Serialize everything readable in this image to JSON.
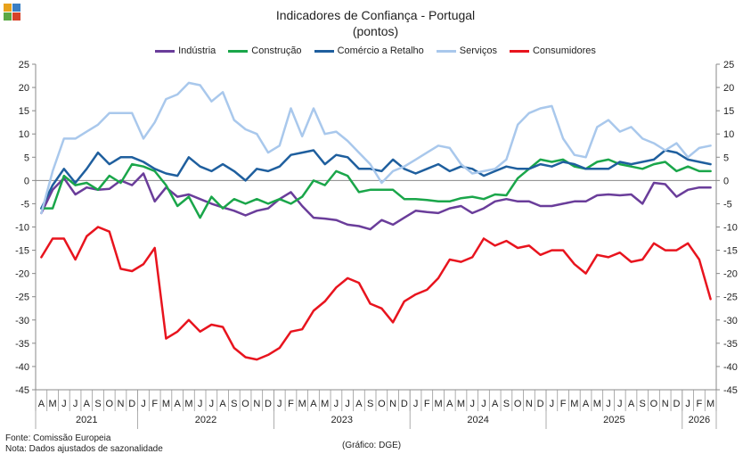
{
  "header": {
    "title": "Indicadores de Confiança - Portugal",
    "subtitle": "(pontos)"
  },
  "footer": {
    "source": "Fonte: Comissão Europeia",
    "note": "Nota: Dados ajustados de sazonalidade",
    "credit": "(Gráfico: DGE)"
  },
  "logo_colors": [
    "#e8a21c",
    "#3b7fc4",
    "#5aa844",
    "#d6432a"
  ],
  "chart_data": {
    "type": "line",
    "title": "Indicadores de Confiança - Portugal",
    "subtitle": "(pontos)",
    "ylim": [
      -45,
      25
    ],
    "yticks": [
      25,
      20,
      15,
      10,
      5,
      0,
      -5,
      -10,
      -15,
      -20,
      -25,
      -30,
      -35,
      -40,
      -45
    ],
    "y2ticks": [
      25,
      20,
      15,
      10,
      5,
      0,
      -5,
      -10,
      -15,
      -20,
      -25,
      -30,
      -35,
      -40,
      -45
    ],
    "grid": false,
    "legend_position": "top",
    "month_labels": [
      "A",
      "M",
      "J",
      "J",
      "A",
      "S",
      "O",
      "N",
      "D",
      "J",
      "F",
      "M",
      "A",
      "M",
      "J",
      "J",
      "A",
      "S",
      "O",
      "N",
      "D",
      "J",
      "F",
      "M",
      "A",
      "M",
      "J",
      "J",
      "A",
      "S",
      "O",
      "N",
      "D",
      "J",
      "F",
      "M",
      "A",
      "M",
      "J",
      "J",
      "A",
      "S",
      "O",
      "N",
      "D",
      "J",
      "F",
      "M",
      "A",
      "M",
      "J",
      "J",
      "A",
      "S",
      "O",
      "N",
      "D",
      "J",
      "F",
      "M"
    ],
    "years": [
      {
        "label": "2021",
        "start": 0,
        "end": 9
      },
      {
        "label": "2022",
        "start": 9,
        "end": 21
      },
      {
        "label": "2023",
        "start": 21,
        "end": 33
      },
      {
        "label": "2024",
        "start": 33,
        "end": 45
      },
      {
        "label": "2025",
        "start": 45,
        "end": 57
      },
      {
        "label": "2026",
        "start": 57,
        "end": 60
      }
    ],
    "series": [
      {
        "name": "Indústria",
        "color": "#6a3d9a",
        "values": [
          -7,
          -2,
          0.5,
          -3,
          -1.5,
          -2,
          -1.8,
          0,
          -1,
          1.5,
          -4.5,
          -1.5,
          -3.5,
          -3,
          -4,
          -5,
          -5.8,
          -6.5,
          -7.5,
          -6.5,
          -6,
          -4,
          -2.5,
          -5.5,
          -8,
          -8.2,
          -8.5,
          -9.5,
          -9.8,
          -10.5,
          -8.5,
          -9.5,
          -8,
          -6.5,
          -6.8,
          -7,
          -6,
          -5.5,
          -7,
          -6,
          -4.5,
          -4,
          -4.5,
          -4.5,
          -5.5,
          -5.5,
          -5,
          -4.5,
          -4.5,
          -3.2,
          -3,
          -3.2,
          -3,
          -5,
          -0.5,
          -0.8,
          -3.5,
          -2,
          -1.5,
          -1.5
        ]
      },
      {
        "name": "Construção",
        "color": "#1aa64a",
        "values": [
          -6,
          -6,
          1,
          -1,
          -0.5,
          -2,
          1,
          -0.5,
          3.5,
          3,
          2,
          -1,
          -5.5,
          -3.5,
          -8,
          -3.5,
          -6,
          -4,
          -5,
          -4,
          -5,
          -4,
          -5,
          -3.5,
          0,
          -1,
          2,
          1,
          -2.5,
          -2,
          -2,
          -2,
          -4,
          -4,
          -4.2,
          -4.5,
          -4.5,
          -3.8,
          -3.5,
          -4,
          -3,
          -3.2,
          0.5,
          2.5,
          4.5,
          4,
          4.5,
          3,
          2.5,
          4,
          4.5,
          3.5,
          3,
          2.5,
          3.5,
          4,
          2,
          3,
          2,
          2
        ]
      },
      {
        "name": "Comércio a Retalho",
        "color": "#1f5f9e",
        "values": [
          -6,
          -1,
          2.5,
          -0.5,
          2.5,
          6,
          3.5,
          5,
          5,
          4,
          2.5,
          1.5,
          1,
          5,
          3,
          2,
          3.5,
          2,
          0,
          2.5,
          2,
          3,
          5.5,
          6,
          6.5,
          3.5,
          5.5,
          5,
          2.5,
          2.5,
          2,
          4.5,
          2.5,
          1.5,
          2.5,
          3.5,
          2,
          3,
          2.5,
          1,
          2,
          3,
          2.5,
          2.5,
          3.5,
          3,
          4,
          3.5,
          2.5,
          2.5,
          2.5,
          4,
          3.5,
          4,
          4.5,
          6.5,
          6,
          4.5,
          4,
          3.5
        ]
      },
      {
        "name": "Serviços",
        "color": "#a9c8ec",
        "values": [
          -7,
          2,
          9,
          9,
          10.5,
          12,
          14.5,
          14.5,
          14.5,
          9,
          12.5,
          17.5,
          18.5,
          21,
          20.5,
          17,
          19,
          13,
          11,
          10,
          6,
          7.5,
          15.5,
          9.5,
          15.5,
          10,
          10.5,
          8.5,
          6,
          3.5,
          -0.5,
          2,
          3,
          4.5,
          6,
          7.5,
          7,
          3.5,
          1.5,
          2,
          2.5,
          4.5,
          12,
          14.5,
          15.5,
          16,
          9,
          5.5,
          5,
          11.5,
          13,
          10.5,
          11.5,
          9,
          8,
          6.5,
          8,
          5,
          7,
          7.5
        ]
      },
      {
        "name": "Consumidores",
        "color": "#e8141e",
        "values": [
          -16.5,
          -12.5,
          -12.5,
          -17,
          -12,
          -10,
          -11,
          -19,
          -19.5,
          -18,
          -14.5,
          -34,
          -32.5,
          -30,
          -32.5,
          -31,
          -31.5,
          -36,
          -38,
          -38.5,
          -37.5,
          -36,
          -32.5,
          -32,
          -28,
          -26,
          -23,
          -21,
          -22,
          -26.5,
          -27.5,
          -30.5,
          -26,
          -24.5,
          -23.5,
          -21,
          -17,
          -17.5,
          -16.5,
          -12.5,
          -14,
          -13,
          -14.5,
          -14,
          -16,
          -15,
          -15,
          -18,
          -20,
          -16,
          -16.5,
          -15.5,
          -17.5,
          -17,
          -13.5,
          -15,
          -15,
          -13.5,
          -17,
          -25.5
        ]
      }
    ]
  }
}
